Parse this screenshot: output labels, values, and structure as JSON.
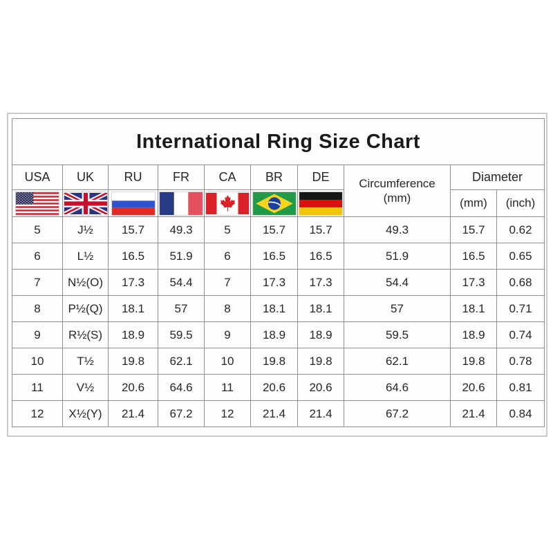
{
  "title": "International Ring Size Chart",
  "chart_data": {
    "type": "table",
    "title": "International Ring Size Chart",
    "country_columns": [
      {
        "code": "USA",
        "flag_icon": "usa-flag-icon"
      },
      {
        "code": "UK",
        "flag_icon": "uk-flag-icon"
      },
      {
        "code": "RU",
        "flag_icon": "russia-flag-icon"
      },
      {
        "code": "FR",
        "flag_icon": "france-flag-icon"
      },
      {
        "code": "CA",
        "flag_icon": "canada-flag-icon"
      },
      {
        "code": "BR",
        "flag_icon": "brazil-flag-icon"
      },
      {
        "code": "DE",
        "flag_icon": "germany-flag-icon"
      }
    ],
    "group_headers": {
      "circumference": {
        "label": "Circumference",
        "unit": "(mm)"
      },
      "diameter": {
        "label": "Diameter",
        "unit_mm": "(mm)",
        "unit_inch": "(inch)"
      }
    },
    "column_headers": [
      "USA",
      "UK",
      "RU",
      "FR",
      "CA",
      "BR",
      "DE",
      "Circumference (mm)",
      "Diameter (mm)",
      "Diameter (inch)"
    ],
    "rows": [
      [
        "5",
        "J½",
        "15.7",
        "49.3",
        "5",
        "15.7",
        "15.7",
        "49.3",
        "15.7",
        "0.62"
      ],
      [
        "6",
        "L½",
        "16.5",
        "51.9",
        "6",
        "16.5",
        "16.5",
        "51.9",
        "16.5",
        "0.65"
      ],
      [
        "7",
        "N½(O)",
        "17.3",
        "54.4",
        "7",
        "17.3",
        "17.3",
        "54.4",
        "17.3",
        "0.68"
      ],
      [
        "8",
        "P½(Q)",
        "18.1",
        "57",
        "8",
        "18.1",
        "18.1",
        "57",
        "18.1",
        "0.71"
      ],
      [
        "9",
        "R½(S)",
        "18.9",
        "59.5",
        "9",
        "18.9",
        "18.9",
        "59.5",
        "18.9",
        "0.74"
      ],
      [
        "10",
        "T½",
        "19.8",
        "62.1",
        "10",
        "19.8",
        "19.8",
        "62.1",
        "19.8",
        "0.78"
      ],
      [
        "11",
        "V½",
        "20.6",
        "64.6",
        "11",
        "20.6",
        "20.6",
        "64.6",
        "20.6",
        "0.81"
      ],
      [
        "12",
        "X½(Y)",
        "21.4",
        "67.2",
        "12",
        "21.4",
        "21.4",
        "67.2",
        "21.4",
        "0.84"
      ]
    ]
  },
  "colors": {
    "outer_frame_border": "#c9c9c9",
    "table_border": "#8f8f8f",
    "text": "#262626",
    "background": "#ffffff"
  }
}
